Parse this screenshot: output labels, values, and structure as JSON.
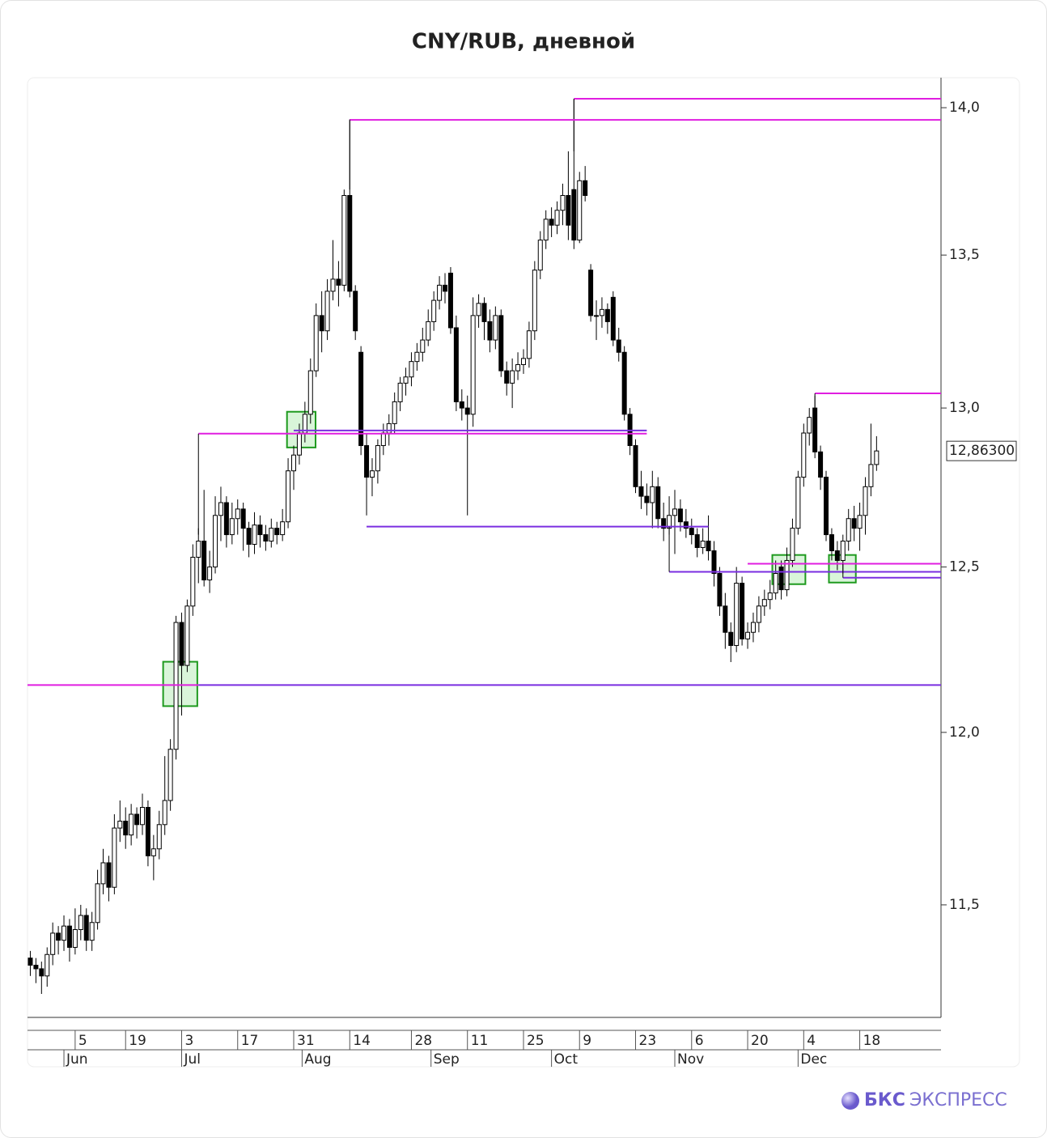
{
  "chart_data": {
    "type": "candlestick",
    "title": "CNY/RUB, дневной",
    "log_scale": true,
    "ylim": [
      11.185,
      14.104
    ],
    "yticks": [
      {
        "value": 11.5,
        "label": "11,5"
      },
      {
        "value": 12.0,
        "label": "12,0"
      },
      {
        "value": 12.5,
        "label": "12,5"
      },
      {
        "value": 13.0,
        "label": "13,0"
      },
      {
        "value": 13.5,
        "label": "13,5"
      },
      {
        "value": 14.0,
        "label": "14,0"
      }
    ],
    "xlim": [
      -0.5,
      162.5
    ],
    "xticks": [
      {
        "value": 8,
        "label": "5"
      },
      {
        "value": 17,
        "label": "19"
      },
      {
        "value": 27,
        "label": "3"
      },
      {
        "value": 37,
        "label": "17"
      },
      {
        "value": 47,
        "label": "31"
      },
      {
        "value": 57,
        "label": "14"
      },
      {
        "value": 68,
        "label": "28"
      },
      {
        "value": 78,
        "label": "11"
      },
      {
        "value": 88,
        "label": "25"
      },
      {
        "value": 98,
        "label": "9"
      },
      {
        "value": 108,
        "label": "23"
      },
      {
        "value": 118,
        "label": "6"
      },
      {
        "value": 128,
        "label": "20"
      },
      {
        "value": 138,
        "label": "4"
      },
      {
        "value": 148,
        "label": "18"
      }
    ],
    "month_ticks": [
      {
        "value": 6,
        "label": "Jun"
      },
      {
        "value": 27,
        "label": "Jul"
      },
      {
        "value": 48.5,
        "label": "Aug"
      },
      {
        "value": 71.5,
        "label": "Sep"
      },
      {
        "value": 93,
        "label": "Oct"
      },
      {
        "value": 115,
        "label": "Nov"
      },
      {
        "value": 137,
        "label": "Dec"
      }
    ],
    "up_color": "#ffffff",
    "down_color": "#000000",
    "candles": [
      [
        11.35,
        11.37,
        11.3,
        11.33
      ],
      [
        11.33,
        11.35,
        11.28,
        11.32
      ],
      [
        11.32,
        11.34,
        11.25,
        11.3
      ],
      [
        11.3,
        11.38,
        11.27,
        11.36
      ],
      [
        11.36,
        11.45,
        11.33,
        11.42
      ],
      [
        11.42,
        11.44,
        11.36,
        11.4
      ],
      [
        11.4,
        11.47,
        11.37,
        11.44
      ],
      [
        11.44,
        11.46,
        11.34,
        11.38
      ],
      [
        11.38,
        11.49,
        11.36,
        11.43
      ],
      [
        11.43,
        11.5,
        11.4,
        11.47
      ],
      [
        11.47,
        11.49,
        11.37,
        11.4
      ],
      [
        11.4,
        11.48,
        11.37,
        11.45
      ],
      [
        11.45,
        11.6,
        11.43,
        11.56
      ],
      [
        11.56,
        11.66,
        11.53,
        11.62
      ],
      [
        11.62,
        11.64,
        11.51,
        11.55
      ],
      [
        11.55,
        11.76,
        11.53,
        11.72
      ],
      [
        11.72,
        11.8,
        11.68,
        11.74
      ],
      [
        11.74,
        11.78,
        11.66,
        11.7
      ],
      [
        11.7,
        11.79,
        11.67,
        11.76
      ],
      [
        11.76,
        11.78,
        11.69,
        11.73
      ],
      [
        11.73,
        11.82,
        11.7,
        11.78
      ],
      [
        11.78,
        11.8,
        11.61,
        11.64
      ],
      [
        11.64,
        11.7,
        11.57,
        11.66
      ],
      [
        11.66,
        11.77,
        11.63,
        11.73
      ],
      [
        11.73,
        11.93,
        11.7,
        11.8
      ],
      [
        11.8,
        11.98,
        11.77,
        11.95
      ],
      [
        11.95,
        12.35,
        11.92,
        12.33
      ],
      [
        12.33,
        12.36,
        12.05,
        12.2
      ],
      [
        12.2,
        12.4,
        12.18,
        12.38
      ],
      [
        12.38,
        12.57,
        12.35,
        12.53
      ],
      [
        12.53,
        12.62,
        12.45,
        12.58
      ],
      [
        12.58,
        12.74,
        12.44,
        12.46
      ],
      [
        12.46,
        12.55,
        12.42,
        12.5
      ],
      [
        12.5,
        12.72,
        12.48,
        12.66
      ],
      [
        12.66,
        12.75,
        12.58,
        12.7
      ],
      [
        12.7,
        12.72,
        12.56,
        12.6
      ],
      [
        12.6,
        12.7,
        12.57,
        12.65
      ],
      [
        12.65,
        12.71,
        12.6,
        12.68
      ],
      [
        12.68,
        12.7,
        12.55,
        12.62
      ],
      [
        12.62,
        12.64,
        12.53,
        12.57
      ],
      [
        12.57,
        12.67,
        12.54,
        12.63
      ],
      [
        12.63,
        12.66,
        12.56,
        12.6
      ],
      [
        12.6,
        12.63,
        12.55,
        12.58
      ],
      [
        12.58,
        12.65,
        12.56,
        12.62
      ],
      [
        12.62,
        12.64,
        12.57,
        12.6
      ],
      [
        12.6,
        12.68,
        12.58,
        12.64
      ],
      [
        12.64,
        12.84,
        12.62,
        12.8
      ],
      [
        12.8,
        12.88,
        12.74,
        12.85
      ],
      [
        12.85,
        12.95,
        12.82,
        12.92
      ],
      [
        12.92,
        13.02,
        12.89,
        12.98
      ],
      [
        12.98,
        13.16,
        12.95,
        13.12
      ],
      [
        13.12,
        13.34,
        13.1,
        13.3
      ],
      [
        13.3,
        13.38,
        13.18,
        13.25
      ],
      [
        13.25,
        13.42,
        13.22,
        13.38
      ],
      [
        13.38,
        13.55,
        13.35,
        13.42
      ],
      [
        13.42,
        13.48,
        13.33,
        13.4
      ],
      [
        13.4,
        13.72,
        13.38,
        13.7
      ],
      [
        13.7,
        13.96,
        13.36,
        13.38
      ],
      [
        13.38,
        13.4,
        13.22,
        13.25
      ],
      [
        13.18,
        13.2,
        12.85,
        12.88
      ],
      [
        12.88,
        12.92,
        12.66,
        12.78
      ],
      [
        12.78,
        12.84,
        12.72,
        12.8
      ],
      [
        12.8,
        12.9,
        12.76,
        12.88
      ],
      [
        12.88,
        12.95,
        12.85,
        12.92
      ],
      [
        12.92,
        12.98,
        12.88,
        12.95
      ],
      [
        12.95,
        13.05,
        12.92,
        13.02
      ],
      [
        13.02,
        13.1,
        12.99,
        13.08
      ],
      [
        13.08,
        13.13,
        13.04,
        13.1
      ],
      [
        13.1,
        13.18,
        13.07,
        13.15
      ],
      [
        13.15,
        13.21,
        13.12,
        13.18
      ],
      [
        13.18,
        13.26,
        13.15,
        13.22
      ],
      [
        13.22,
        13.32,
        13.2,
        13.28
      ],
      [
        13.28,
        13.38,
        13.25,
        13.35
      ],
      [
        13.35,
        13.43,
        13.32,
        13.4
      ],
      [
        13.4,
        13.44,
        13.34,
        13.38
      ],
      [
        13.44,
        13.46,
        13.24,
        13.26
      ],
      [
        13.26,
        13.3,
        12.99,
        13.02
      ],
      [
        13.02,
        13.06,
        12.96,
        13.0
      ],
      [
        13.0,
        13.04,
        12.66,
        12.98
      ],
      [
        12.98,
        13.36,
        12.94,
        13.3
      ],
      [
        13.3,
        13.37,
        13.26,
        13.34
      ],
      [
        13.34,
        13.36,
        13.22,
        13.28
      ],
      [
        13.28,
        13.32,
        13.18,
        13.22
      ],
      [
        13.22,
        13.33,
        13.19,
        13.3
      ],
      [
        13.3,
        13.32,
        13.1,
        13.12
      ],
      [
        13.12,
        13.15,
        13.04,
        13.08
      ],
      [
        13.08,
        13.16,
        13.0,
        13.12
      ],
      [
        13.12,
        13.18,
        13.09,
        13.14
      ],
      [
        13.14,
        13.19,
        13.11,
        13.16
      ],
      [
        13.16,
        13.28,
        13.13,
        13.25
      ],
      [
        13.25,
        13.48,
        13.22,
        13.45
      ],
      [
        13.45,
        13.58,
        13.42,
        13.55
      ],
      [
        13.55,
        13.65,
        13.52,
        13.62
      ],
      [
        13.62,
        13.66,
        13.56,
        13.6
      ],
      [
        13.6,
        13.68,
        13.57,
        13.65
      ],
      [
        13.65,
        13.74,
        13.6,
        13.7
      ],
      [
        13.7,
        13.85,
        13.55,
        13.6
      ],
      [
        13.72,
        14.03,
        13.52,
        13.55
      ],
      [
        13.55,
        13.78,
        13.54,
        13.75
      ],
      [
        13.75,
        13.8,
        13.68,
        13.7
      ],
      [
        13.45,
        13.47,
        13.28,
        13.3
      ],
      [
        13.3,
        13.35,
        13.22,
        13.3
      ],
      [
        13.3,
        13.36,
        13.26,
        13.32
      ],
      [
        13.32,
        13.34,
        13.24,
        13.28
      ],
      [
        13.36,
        13.38,
        13.2,
        13.22
      ],
      [
        13.22,
        13.26,
        13.15,
        13.18
      ],
      [
        13.18,
        13.2,
        12.96,
        12.98
      ],
      [
        12.98,
        13.0,
        12.85,
        12.88
      ],
      [
        12.88,
        12.9,
        12.73,
        12.75
      ],
      [
        12.75,
        12.8,
        12.68,
        12.72
      ],
      [
        12.72,
        12.76,
        12.66,
        12.7
      ],
      [
        12.7,
        12.8,
        12.62,
        12.75
      ],
      [
        12.75,
        12.78,
        12.62,
        12.65
      ],
      [
        12.65,
        12.7,
        12.58,
        12.62
      ],
      [
        12.62,
        12.72,
        12.6,
        12.66
      ],
      [
        12.66,
        12.74,
        12.54,
        12.68
      ],
      [
        12.68,
        12.71,
        12.61,
        12.64
      ],
      [
        12.64,
        12.68,
        12.59,
        12.62
      ],
      [
        12.62,
        12.65,
        12.57,
        12.6
      ],
      [
        12.6,
        12.62,
        12.53,
        12.56
      ],
      [
        12.56,
        12.62,
        12.54,
        12.58
      ],
      [
        12.58,
        12.66,
        12.52,
        12.55
      ],
      [
        12.55,
        12.58,
        12.44,
        12.48
      ],
      [
        12.48,
        12.5,
        12.35,
        12.38
      ],
      [
        12.38,
        12.42,
        12.25,
        12.3
      ],
      [
        12.3,
        12.33,
        12.21,
        12.26
      ],
      [
        12.26,
        12.5,
        12.24,
        12.45
      ],
      [
        12.45,
        12.47,
        12.26,
        12.28
      ],
      [
        12.28,
        12.33,
        12.25,
        12.3
      ],
      [
        12.3,
        12.36,
        12.27,
        12.33
      ],
      [
        12.33,
        12.41,
        12.3,
        12.38
      ],
      [
        12.38,
        12.43,
        12.35,
        12.4
      ],
      [
        12.4,
        12.46,
        12.37,
        12.42
      ],
      [
        12.42,
        12.52,
        12.4,
        12.48
      ],
      [
        12.5,
        12.52,
        12.4,
        12.43
      ],
      [
        12.43,
        12.56,
        12.41,
        12.52
      ],
      [
        12.52,
        12.65,
        12.5,
        12.62
      ],
      [
        12.62,
        12.8,
        12.6,
        12.78
      ],
      [
        12.78,
        12.95,
        12.75,
        12.92
      ],
      [
        12.92,
        13.0,
        12.88,
        12.97
      ],
      [
        13.0,
        13.04,
        12.84,
        12.86
      ],
      [
        12.86,
        12.88,
        12.74,
        12.78
      ],
      [
        12.78,
        12.8,
        12.58,
        12.6
      ],
      [
        12.6,
        12.62,
        12.52,
        12.55
      ],
      [
        12.55,
        12.58,
        12.49,
        12.52
      ],
      [
        12.52,
        12.6,
        12.48,
        12.58
      ],
      [
        12.58,
        12.68,
        12.55,
        12.65
      ],
      [
        12.65,
        12.69,
        12.58,
        12.62
      ],
      [
        12.62,
        12.7,
        12.55,
        12.66
      ],
      [
        12.66,
        12.78,
        12.6,
        12.75
      ],
      [
        12.75,
        12.95,
        12.72,
        12.82
      ],
      [
        12.82,
        12.91,
        12.8,
        12.863
      ]
    ],
    "last_price": {
      "value": 12.863,
      "label": "12,86300"
    },
    "levels": [
      {
        "value": 14.031,
        "from": 97,
        "to": 162.5,
        "stem": 13.85,
        "color": "#e01ee0"
      },
      {
        "value": 13.958,
        "from": 57,
        "to": 162.5,
        "stem": 13.72,
        "color": "#e01ee0"
      },
      {
        "value": 12.918,
        "from": 30,
        "to": 110,
        "stem": 12.6,
        "color": "#e01ee0"
      },
      {
        "value": 12.928,
        "from": 47,
        "to": 110,
        "color": "#7a2ee0"
      },
      {
        "value": 12.625,
        "from": 60,
        "to": 121,
        "color": "#7a2ee0"
      },
      {
        "value": 13.047,
        "from": 140,
        "to": 162.5,
        "stem": 12.9,
        "color": "#e01ee0"
      },
      {
        "value": 12.51,
        "from": 128,
        "to": 162.5,
        "color": "#e01ee0"
      },
      {
        "value": 12.485,
        "from": 114,
        "to": 162.5,
        "stem": 12.625,
        "color": "#7a2ee0"
      },
      {
        "value": 12.467,
        "from": 145,
        "to": 162.5,
        "stem": 12.51,
        "color": "#7a2ee0"
      },
      {
        "value": 12.141,
        "from": -0.5,
        "to": 30,
        "color": "#e01ee0"
      },
      {
        "value": 12.141,
        "from": 30,
        "to": 162.5,
        "color": "#7a2ee0"
      }
    ],
    "boxes": [
      {
        "from": 23.7,
        "to": 29.8,
        "low": 12.078,
        "high": 12.211
      },
      {
        "from": 45.8,
        "to": 50.9,
        "low": 12.874,
        "high": 12.988
      },
      {
        "from": 132.4,
        "to": 138.3,
        "low": 12.447,
        "high": 12.537
      },
      {
        "from": 142.5,
        "to": 147.3,
        "low": 12.452,
        "high": 12.537
      }
    ],
    "box_color": "#1e9a1e"
  },
  "brand_bold": "БКС",
  "brand": "ЭКСПРЕСС"
}
